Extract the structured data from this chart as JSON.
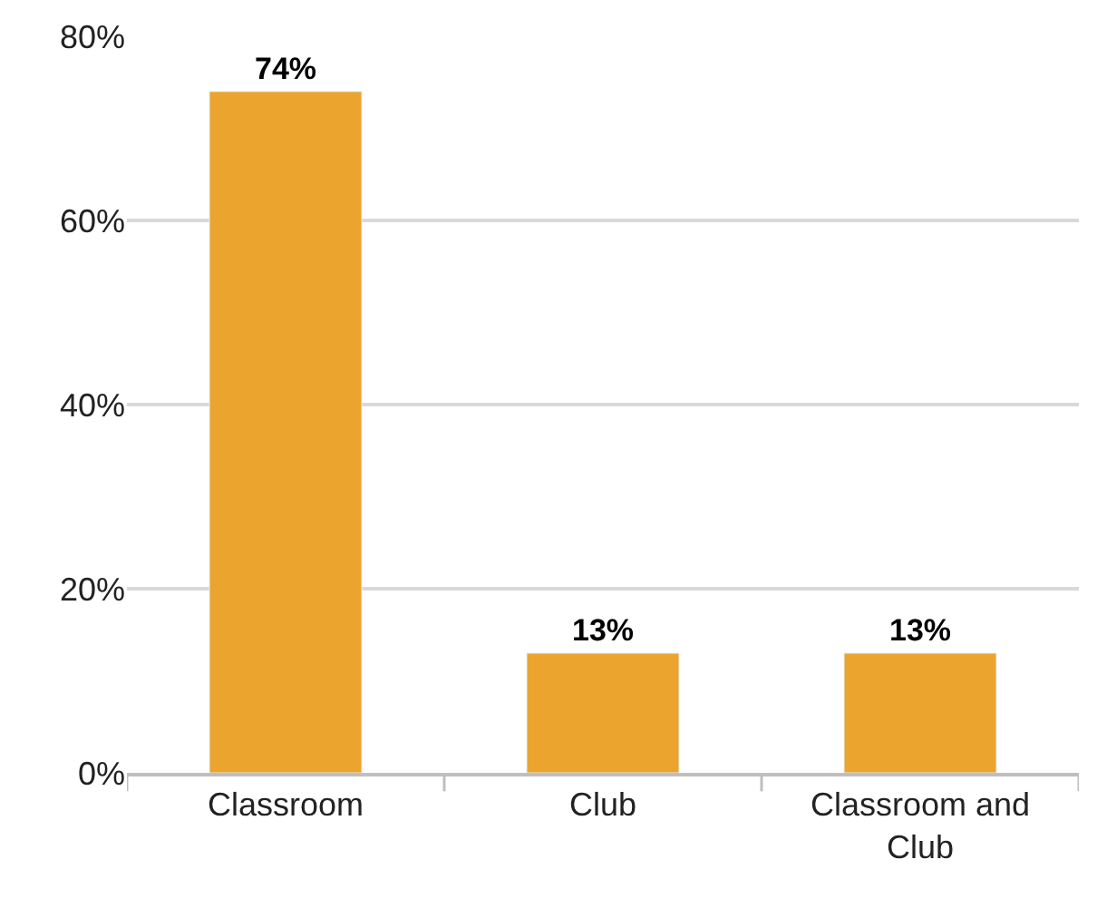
{
  "chart_data": {
    "type": "bar",
    "categories": [
      "Classroom",
      "Club",
      "Classroom and Club"
    ],
    "values": [
      74,
      13,
      13
    ],
    "value_labels": [
      "74%",
      "13%",
      "13%"
    ],
    "color": "#eba42e",
    "ylim": [
      0,
      80
    ],
    "yticks": [
      {
        "value": 0,
        "label": "0%"
      },
      {
        "value": 20,
        "label": "20%"
      },
      {
        "value": 40,
        "label": "40%"
      },
      {
        "value": 60,
        "label": "60%"
      },
      {
        "value": 80,
        "label": "80%"
      }
    ],
    "grid": "y"
  }
}
